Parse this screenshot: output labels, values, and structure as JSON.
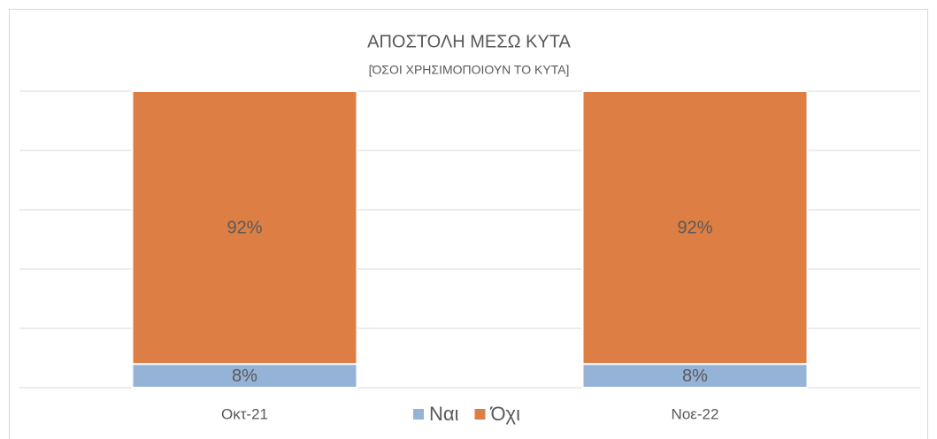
{
  "chart_data": {
    "type": "stacked_bar",
    "title": "ΑΠΟΣΤΟΛΗ ΜΕΣΩ ΚΥΤΑ",
    "subtitle": "[ΌΣΟΙ ΧΡΗΣΙΜΟΠΟΙΟΥΝ ΤΟ ΚΥΤΑ]",
    "categories": [
      "Οκτ-21",
      "Νοε-22"
    ],
    "series": [
      {
        "name": "Ναι",
        "color": "#95b3d7",
        "values": [
          8,
          8
        ],
        "value_labels": [
          "8%",
          "8%"
        ]
      },
      {
        "name": "Όχι",
        "color": "#dd7f45",
        "values": [
          92,
          92
        ],
        "value_labels": [
          "92%",
          "92%"
        ]
      }
    ],
    "ylim": [
      0,
      100
    ],
    "yticks": [
      0,
      20,
      40,
      60,
      80,
      100
    ],
    "grid": true,
    "legend": "bottom"
  }
}
